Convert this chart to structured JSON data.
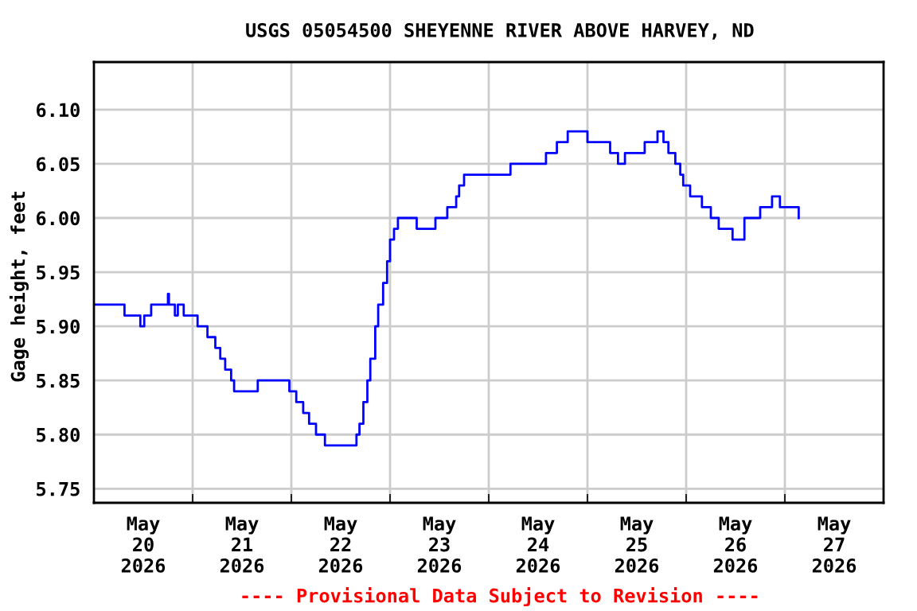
{
  "chart_data": {
    "type": "step",
    "title": "USGS 05054500 SHEYENNE RIVER ABOVE HARVEY, ND",
    "ylabel": "Gage height, feet",
    "annotations": [
      "---- Provisional Data Subject to Revision ----"
    ],
    "x": [
      "2026-05-20T00:00",
      "2026-05-20T07:26",
      "2026-05-20T11:17",
      "2026-05-20T12:14",
      "2026-05-20T13:55",
      "2026-05-20T18:00",
      "2026-05-20T18:14",
      "2026-05-20T19:41",
      "2026-05-20T20:24",
      "2026-05-20T21:50",
      "2026-05-21T01:12",
      "2026-05-21T03:36",
      "2026-05-21T05:31",
      "2026-05-21T06:43",
      "2026-05-21T07:55",
      "2026-05-21T09:22",
      "2026-05-21T10:05",
      "2026-05-21T15:50",
      "2026-05-21T23:31",
      "2026-05-22T01:12",
      "2026-05-22T02:53",
      "2026-05-22T04:19",
      "2026-05-22T06:00",
      "2026-05-22T08:10",
      "2026-05-22T15:50",
      "2026-05-22T16:34",
      "2026-05-22T17:31",
      "2026-05-22T18:29",
      "2026-05-22T19:12",
      "2026-05-22T20:24",
      "2026-05-22T21:07",
      "2026-05-22T22:19",
      "2026-05-22T23:17",
      "2026-05-23T00:00",
      "2026-05-23T00:58",
      "2026-05-23T01:55",
      "2026-05-23T06:29",
      "2026-05-23T11:02",
      "2026-05-23T13:55",
      "2026-05-23T16:05",
      "2026-05-23T16:48",
      "2026-05-23T18:00",
      "2026-05-24T05:17",
      "2026-05-24T13:55",
      "2026-05-24T16:34",
      "2026-05-24T19:12",
      "2026-05-25T00:00",
      "2026-05-25T05:31",
      "2026-05-25T07:26",
      "2026-05-25T09:07",
      "2026-05-25T13:55",
      "2026-05-25T17:02",
      "2026-05-25T18:29",
      "2026-05-25T19:41",
      "2026-05-25T21:22",
      "2026-05-25T22:34",
      "2026-05-25T23:17",
      "2026-05-26T00:58",
      "2026-05-26T03:50",
      "2026-05-26T06:00",
      "2026-05-26T07:55",
      "2026-05-26T11:17",
      "2026-05-26T14:10",
      "2026-05-26T18:00",
      "2026-05-26T20:53",
      "2026-05-26T22:48",
      "2026-05-27T03:22"
    ],
    "series": [
      {
        "color": "#0000ff",
        "values": [
          5.92,
          5.91,
          5.9,
          5.91,
          5.92,
          5.93,
          5.92,
          5.91,
          5.92,
          5.91,
          5.9,
          5.89,
          5.88,
          5.87,
          5.86,
          5.85,
          5.84,
          5.85,
          5.84,
          5.83,
          5.82,
          5.81,
          5.8,
          5.79,
          5.8,
          5.81,
          5.83,
          5.85,
          5.87,
          5.9,
          5.92,
          5.94,
          5.96,
          5.98,
          5.99,
          6.0,
          5.99,
          6.0,
          6.01,
          6.02,
          6.03,
          6.04,
          6.05,
          6.06,
          6.07,
          6.08,
          6.07,
          6.06,
          6.05,
          6.06,
          6.07,
          6.08,
          6.07,
          6.06,
          6.05,
          6.04,
          6.03,
          6.02,
          6.01,
          6.0,
          5.99,
          5.98,
          6.0,
          6.01,
          6.02,
          6.01,
          6.0
        ]
      }
    ],
    "xlim": [
      "2026-05-20T00:00",
      "2026-05-28T00:00"
    ],
    "xticks": [
      {
        "value": "2026-05-20T12:00",
        "label": "May\n20\n2026"
      },
      {
        "value": "2026-05-21T00:00",
        "label": null
      },
      {
        "value": "2026-05-21T12:00",
        "label": "May\n21\n2026"
      },
      {
        "value": "2026-05-22T00:00",
        "label": null
      },
      {
        "value": "2026-05-22T12:00",
        "label": "May\n22\n2026"
      },
      {
        "value": "2026-05-23T00:00",
        "label": null
      },
      {
        "value": "2026-05-23T12:00",
        "label": "May\n23\n2026"
      },
      {
        "value": "2026-05-24T00:00",
        "label": null
      },
      {
        "value": "2026-05-24T12:00",
        "label": "May\n24\n2026"
      },
      {
        "value": "2026-05-25T00:00",
        "label": null
      },
      {
        "value": "2026-05-25T12:00",
        "label": "May\n25\n2026"
      },
      {
        "value": "2026-05-26T00:00",
        "label": null
      },
      {
        "value": "2026-05-26T12:00",
        "label": "May\n26\n2026"
      },
      {
        "value": "2026-05-27T00:00",
        "label": null
      },
      {
        "value": "2026-05-27T12:00",
        "label": "May\n27\n2026"
      }
    ],
    "ylim": [
      5.737,
      6.144
    ],
    "yticks": [
      {
        "value": 5.75,
        "label": "5.75"
      },
      {
        "value": 5.8,
        "label": "5.80"
      },
      {
        "value": 5.85,
        "label": "5.85"
      },
      {
        "value": 5.9,
        "label": "5.90"
      },
      {
        "value": 5.95,
        "label": "5.95"
      },
      {
        "value": 6.0,
        "label": "6.00"
      },
      {
        "value": 6.05,
        "label": "6.05"
      },
      {
        "value": 6.1,
        "label": "6.10"
      }
    ],
    "grid": true
  }
}
